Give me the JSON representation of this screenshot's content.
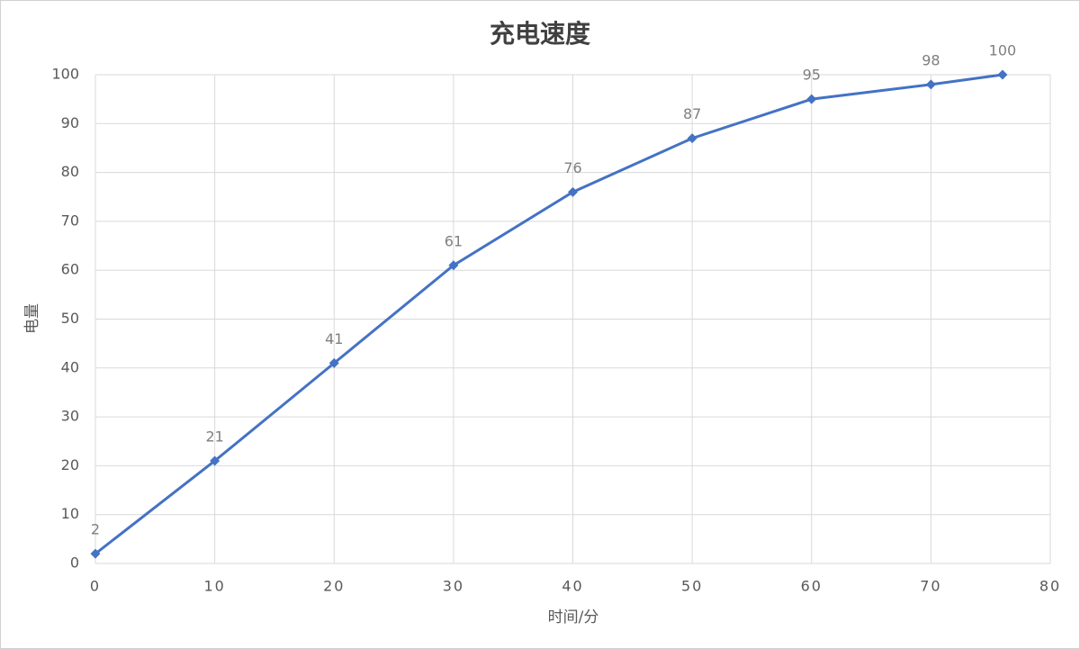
{
  "chart_data": {
    "type": "line",
    "title": "充电速度",
    "x_label": "时间/分",
    "y_label": "电量",
    "x": [
      0,
      10,
      20,
      30,
      40,
      50,
      60,
      70,
      76
    ],
    "values": [
      2,
      21,
      41,
      61,
      76,
      87,
      95,
      98,
      100
    ],
    "color": "#4472c4",
    "xlim": [
      0,
      80
    ],
    "xticks": [
      0,
      10,
      20,
      30,
      40,
      50,
      60,
      70,
      80
    ],
    "ylim": [
      0,
      100
    ],
    "yticks": [
      0,
      10,
      20,
      30,
      40,
      50,
      60,
      70,
      80,
      90,
      100
    ],
    "grid": true,
    "marker": "diamond",
    "data_labels": true
  }
}
